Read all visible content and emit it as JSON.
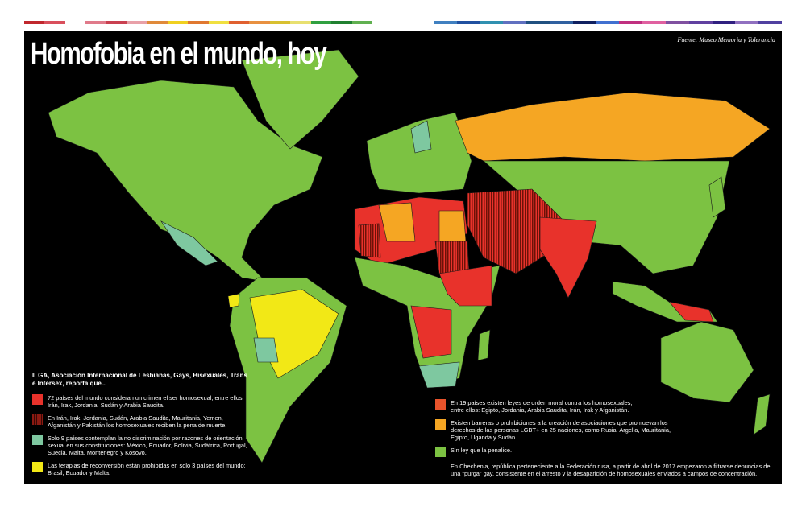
{
  "title": "Homofobia en el mundo, hoy",
  "source": "Fuente: Museo Memoria y Tolerancia",
  "colors": {
    "criminalized": "#e8322b",
    "death_penalty": "#8b1a12",
    "constitutional_protection": "#7ec8a0",
    "conversion_therapy_ban": "#f2e816",
    "moral_laws": "#e8532b",
    "association_barriers": "#f5a623",
    "no_penalty": "#7cc242",
    "background": "#000000"
  },
  "legend_left": {
    "heading": "ILGA, Asociación Internacional de Lesbianas, Gays, Bisexuales, Trans e Intersex, reporta que...",
    "items": [
      {
        "color": "#e8322b",
        "pattern": "solid",
        "text": "72 países del mundo consideran un crimen el ser homosexual, entre ellos: Irán, Irak, Jordania, Sudán y Arabia Saudita."
      },
      {
        "color": "#8b1a12",
        "pattern": "striped",
        "text": "En Irán, Irak, Jordania, Sudán, Arabia Saudita, Mauritania, Yemen, Afganistán y Pakistán los homosexuales reciben la pena de muerte."
      },
      {
        "color": "#7ec8a0",
        "pattern": "solid",
        "text": "Solo 9 países contemplan la no discriminación por razones de orientación sexual en sus constituciones: México, Ecuador, Bolivia, Sudáfrica, Portugal, Suecia, Malta, Montenegro y Kosovo."
      },
      {
        "color": "#f2e816",
        "pattern": "solid",
        "text": "Las terapias de reconversión están prohibidas en solo 3 países del mundo: Brasil, Ecuador y Malta."
      }
    ]
  },
  "legend_right": {
    "items": [
      {
        "color": "#e8532b",
        "text": "En 19 países existen leyes de orden moral contra los homosexuales, entre ellos: Egipto, Jordania, Arabia Saudita, Irán, Irak y Afganistán."
      },
      {
        "color": "#f5a623",
        "text": "Existen barreras o prohibiciones a la creación de asociaciones que promuevan los derechos de las personas LGBT+ en 25 naciones, como Rusia, Argelia, Mauritania, Egipto, Uganda y Sudán."
      },
      {
        "color": "#7cc242",
        "text": "Sin ley que la penalice."
      }
    ],
    "note": "En Chechenia, república perteneciente a la Federación rusa, a partir de abril de 2017 empezaron a filtrarse denuncias de una \"purga\" gay, consistente en el arresto y la desaparición de homosexuales enviados a campos de concentración."
  }
}
